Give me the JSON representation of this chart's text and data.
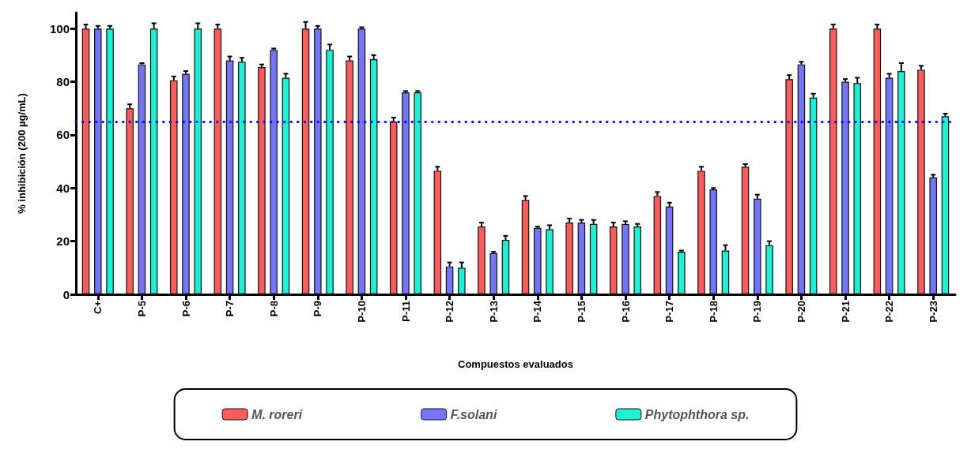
{
  "chart_data": {
    "type": "bar",
    "xlabel": "Compuestos evaluados",
    "ylabel": "% inhibición (200 µg/mL)",
    "categories": [
      "C+",
      "P-5",
      "P-6",
      "P-7",
      "P-8",
      "P-9",
      "P-10",
      "P-11",
      "P-12",
      "P-13",
      "P-14",
      "P-15",
      "P-16",
      "P-17",
      "P-18",
      "P-19",
      "P-20",
      "P-21",
      "P-22",
      "P-23"
    ],
    "series": [
      {
        "name": "M. roreri",
        "color": "#ff5c5c",
        "values": [
          100,
          70,
          80.5,
          100,
          85.5,
          100,
          88,
          65,
          46.5,
          25.5,
          35.5,
          27,
          25.5,
          37,
          46.5,
          48,
          81,
          100,
          100,
          84.5
        ],
        "errors": [
          1.5,
          1.5,
          1.5,
          1.5,
          1,
          2.5,
          1.5,
          1.5,
          1.5,
          1.5,
          1.5,
          1.5,
          1.5,
          1.5,
          1.5,
          1,
          1.5,
          1.5,
          1.5,
          1.5
        ]
      },
      {
        "name": "F.solani",
        "color": "#7474ff",
        "values": [
          100,
          86.5,
          83,
          88,
          92,
          100,
          100,
          76,
          10.5,
          15.5,
          25,
          27,
          26.5,
          33,
          39.5,
          36,
          86.5,
          80,
          81.5,
          44
        ],
        "errors": [
          1,
          0.5,
          1,
          1.5,
          0.5,
          1,
          0.5,
          0.5,
          1.5,
          0.5,
          0.5,
          1,
          1,
          1.5,
          0.5,
          1.5,
          1,
          1,
          1.5,
          1
        ]
      },
      {
        "name": "Phytophthora sp.",
        "color": "#1ef0d2",
        "values": [
          100,
          100,
          100,
          87.5,
          81.5,
          92,
          88.5,
          76,
          10,
          20.5,
          24.5,
          26.5,
          25.5,
          16,
          16.5,
          18.5,
          74,
          79.5,
          84,
          67
        ],
        "errors": [
          1,
          2,
          2,
          1.5,
          1.5,
          2,
          1.5,
          0.5,
          2,
          1.5,
          1.5,
          1.5,
          1,
          0.5,
          2,
          1.5,
          1.5,
          2,
          3,
          1
        ]
      }
    ],
    "ylim": [
      0,
      106
    ],
    "yticks": [
      0,
      20,
      40,
      60,
      80,
      100
    ],
    "ref_lines": [
      {
        "axis": "y",
        "value": 65,
        "color": "#0000ff",
        "line_style": "dotted"
      }
    ],
    "legend": "bottom",
    "grid": false
  }
}
